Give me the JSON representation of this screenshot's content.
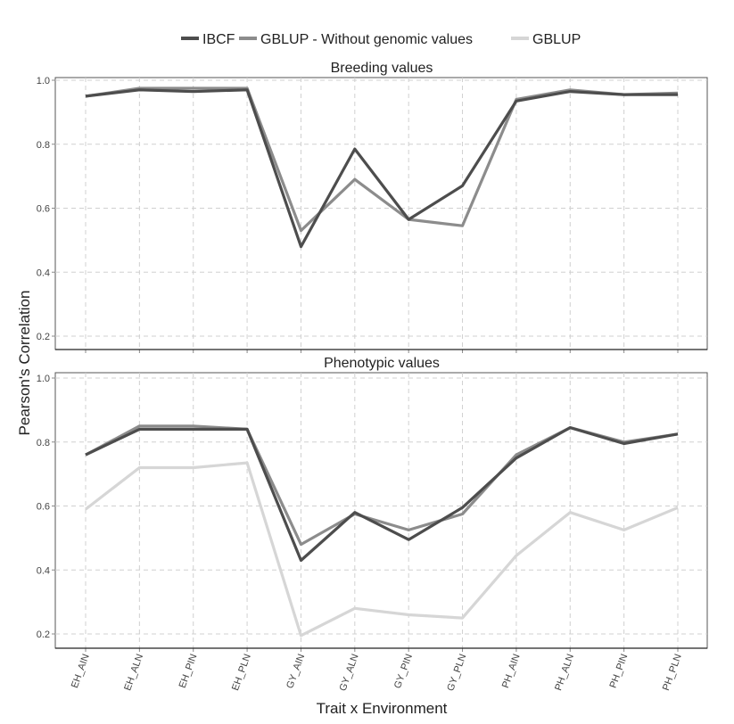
{
  "chart_data": {
    "type": "line",
    "xlabel": "Trait x Environment",
    "ylabel": "Pearson's Correlation",
    "categories": [
      "EH_AIN",
      "EH_ALN",
      "EH_PIN",
      "EH_PLN",
      "GY_AIN",
      "GY_ALN",
      "GY_PIN",
      "GY_PLN",
      "PH_AIN",
      "PH_ALN",
      "PH_PIN",
      "PH_PLN"
    ],
    "ylim": [
      0.15,
      1.01
    ],
    "yticks": [
      0.2,
      0.4,
      0.6,
      0.8,
      1.0
    ],
    "ytick_labels": [
      "0.2",
      "0.4",
      "0.6",
      "0.8",
      "1.0"
    ],
    "grid": true,
    "legend_position": "top",
    "legend": [
      {
        "name": "IBCF",
        "color": "#4d4d4d"
      },
      {
        "name": "GBLUP - Without genomic values",
        "color": "#8c8c8c"
      },
      {
        "name": "GBLUP",
        "color": "#d6d6d6"
      }
    ],
    "panels": [
      {
        "title": "Breeding values",
        "series": [
          {
            "name": "GBLUP - Without genomic values",
            "color": "#8c8c8c",
            "values": [
              0.95,
              0.975,
              0.975,
              0.975,
              0.53,
              0.69,
              0.565,
              0.545,
              0.94,
              0.97,
              0.955,
              0.96
            ]
          },
          {
            "name": "IBCF",
            "color": "#4d4d4d",
            "values": [
              0.95,
              0.97,
              0.965,
              0.97,
              0.48,
              0.785,
              0.565,
              0.67,
              0.935,
              0.965,
              0.955,
              0.955
            ]
          }
        ]
      },
      {
        "title": "Phenotypic values",
        "series": [
          {
            "name": "GBLUP",
            "color": "#d6d6d6",
            "values": [
              0.59,
              0.72,
              0.72,
              0.735,
              0.195,
              0.28,
              0.26,
              0.25,
              0.445,
              0.58,
              0.525,
              0.595
            ]
          },
          {
            "name": "GBLUP - Without genomic values",
            "color": "#8c8c8c",
            "values": [
              0.76,
              0.85,
              0.85,
              0.84,
              0.48,
              0.575,
              0.525,
              0.575,
              0.76,
              0.845,
              0.8,
              0.825
            ]
          },
          {
            "name": "IBCF",
            "color": "#4d4d4d",
            "values": [
              0.76,
              0.84,
              0.84,
              0.84,
              0.43,
              0.58,
              0.495,
              0.595,
              0.75,
              0.845,
              0.795,
              0.825
            ]
          }
        ]
      }
    ]
  }
}
